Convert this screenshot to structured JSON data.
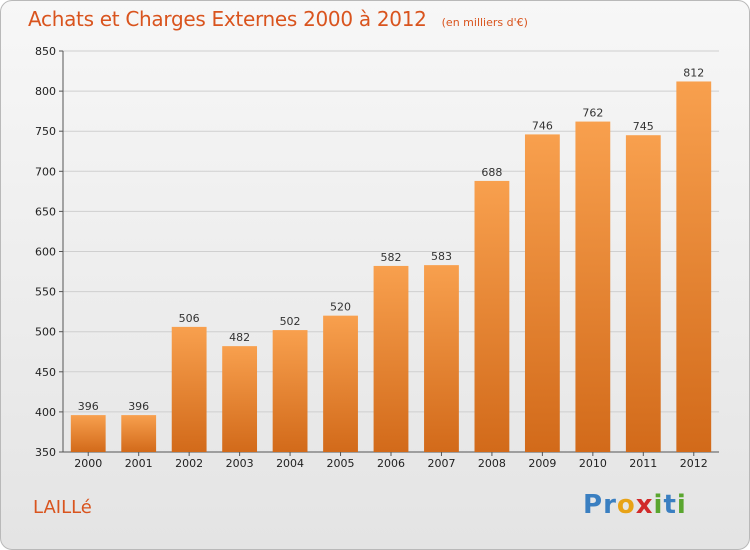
{
  "header": {
    "title": "Achats et Charges Externes 2000 à 2012",
    "subtitle": "(en milliers d'€)"
  },
  "footer": {
    "commune": "LAILLé",
    "logo_letters": [
      "P",
      "r",
      "o",
      "x",
      "i",
      "t",
      "i"
    ],
    "logo_colors": [
      "#3a7fc1",
      "#3a7fc1",
      "#e8a317",
      "#d12a2a",
      "#5aa62f",
      "#3a7fc1",
      "#5aa62f"
    ]
  },
  "chart_data": {
    "type": "bar",
    "title": "Achats et Charges Externes 2000 à 2012",
    "subtitle": "(en milliers d'€)",
    "categories": [
      "2000",
      "2001",
      "2002",
      "2003",
      "2004",
      "2005",
      "2006",
      "2007",
      "2008",
      "2009",
      "2010",
      "2011",
      "2012"
    ],
    "values": [
      396,
      396,
      506,
      482,
      502,
      520,
      582,
      583,
      688,
      746,
      762,
      745,
      812
    ],
    "ylim": [
      350,
      850
    ],
    "yticks": [
      350,
      400,
      450,
      500,
      550,
      600,
      650,
      700,
      750,
      800,
      850
    ],
    "grid": true,
    "bar_color": "#e8822e",
    "data_labels": true
  }
}
